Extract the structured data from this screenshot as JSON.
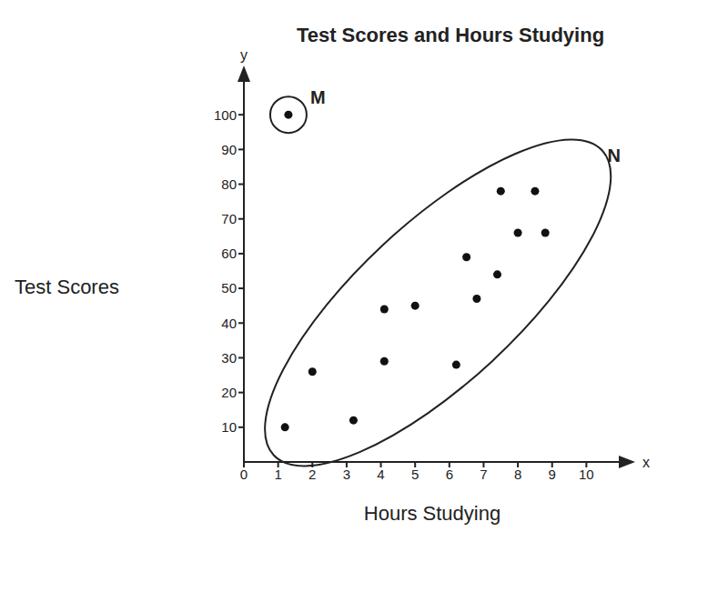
{
  "chart_data": {
    "type": "scatter",
    "title": "Test Scores and Hours Studying",
    "x_label": "Hours Studying",
    "y_label": "Test Scores",
    "x_axis_name": "x",
    "y_axis_name": "y",
    "x": [
      1.3,
      1.2,
      2,
      3.2,
      4.1,
      4.1,
      5,
      6.2,
      6.5,
      6.8,
      7.4,
      7.5,
      8,
      8.5,
      8.8
    ],
    "values": [
      100,
      10,
      26,
      12,
      44,
      29,
      45,
      28,
      59,
      47,
      54,
      78,
      66,
      78,
      66
    ],
    "xlim": [
      0,
      11
    ],
    "ylim": [
      0,
      110
    ],
    "xticks": [
      0,
      1,
      2,
      3,
      4,
      5,
      6,
      7,
      8,
      9,
      10
    ],
    "yticks": [
      10,
      20,
      30,
      40,
      50,
      60,
      70,
      80,
      90,
      100
    ],
    "grid": false,
    "color": "#111111",
    "marker": "circle",
    "annotations": [
      {
        "text": "M",
        "points": [
          0
        ]
      },
      {
        "text": "N",
        "points": [
          1,
          2,
          3,
          4,
          5,
          6,
          7,
          8,
          9,
          10,
          11,
          12,
          13,
          14
        ]
      }
    ]
  }
}
